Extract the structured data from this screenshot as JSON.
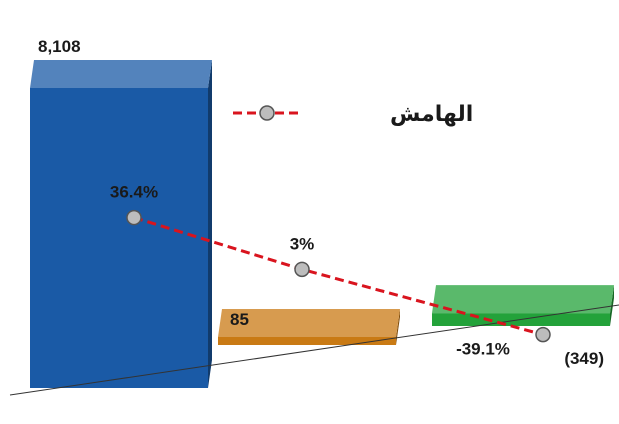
{
  "chart_data": {
    "type": "bar",
    "categories": [
      "",
      "",
      ""
    ],
    "series": [
      {
        "values": [
          8108,
          85,
          -349
        ],
        "value_labels": [
          "8,108",
          "85",
          "(349)"
        ]
      }
    ],
    "line_series": [
      {
        "name": "الهامش",
        "values": [
          36.4,
          3,
          -39.1
        ],
        "value_labels": [
          "36.4%",
          "3%",
          "-39.1%"
        ]
      }
    ],
    "title": "",
    "xlabel": "",
    "ylabel": "",
    "grid": false,
    "legend_position": "top-right",
    "style": "3d"
  },
  "colors": {
    "bar_1": "#1a5aa6",
    "bar_2": "#c97a14",
    "bar_3": "#23a23a",
    "margin_line": "#d9141e",
    "marker": "#bdbdbd"
  }
}
